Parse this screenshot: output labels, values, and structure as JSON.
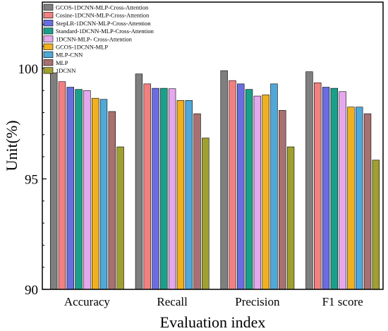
{
  "chart_data": {
    "type": "bar",
    "xlabel": "Evaluation index",
    "ylabel": "Unit(%)",
    "ylim": [
      90,
      103
    ],
    "yticks": [
      90,
      95,
      100
    ],
    "legend_position": "top-left",
    "grid": false,
    "categories": [
      "Accuracy",
      "Recall",
      "Precision",
      "F1 score"
    ],
    "series": [
      {
        "name": "GCOS-1DCNN-MLP-Cross-Attention",
        "color": "#7f7f7f",
        "values": [
          99.8,
          99.75,
          99.9,
          99.85
        ]
      },
      {
        "name": "Cosine-1DCNN-MLP-Cross-Attention",
        "color": "#f28080",
        "values": [
          99.4,
          99.3,
          99.45,
          99.35
        ]
      },
      {
        "name": "StepLR-1DCNN-MLP-Cross-Attention",
        "color": "#6a6de0",
        "values": [
          99.15,
          99.1,
          99.3,
          99.15
        ]
      },
      {
        "name": "Standard-1DCNN-MLP-Cross-Attention",
        "color": "#1aa08a",
        "values": [
          99.05,
          99.1,
          99.05,
          99.1
        ]
      },
      {
        "name": "1DCNN-MLP- Cross-Attention",
        "color": "#e5a8ec",
        "values": [
          99.0,
          99.08,
          98.75,
          98.95
        ]
      },
      {
        "name": "GCOS-1DCNN-MLP",
        "color": "#f0b020",
        "values": [
          98.65,
          98.55,
          98.8,
          98.25
        ]
      },
      {
        "name": "MLP-CNN",
        "color": "#50a8d8",
        "values": [
          98.6,
          98.55,
          99.3,
          98.25
        ]
      },
      {
        "name": "MLP",
        "color": "#a87070",
        "values": [
          98.05,
          97.95,
          98.1,
          97.95
        ]
      },
      {
        "name": "1DCNN",
        "color": "#a0a030",
        "values": [
          96.45,
          96.85,
          96.45,
          95.85
        ]
      }
    ]
  }
}
